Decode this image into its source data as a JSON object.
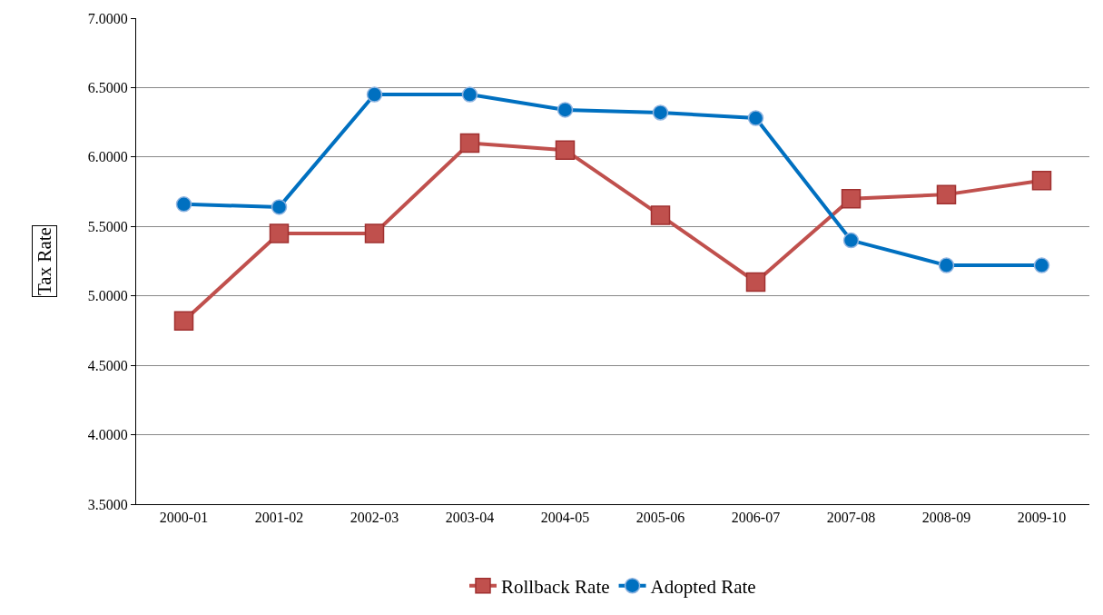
{
  "chart_data": {
    "type": "line",
    "ylabel": "Tax Rate",
    "categories": [
      "2000-01",
      "2001-02",
      "2002-03",
      "2003-04",
      "2004-05",
      "2005-06",
      "2006-07",
      "2007-08",
      "2008-09",
      "2009-10"
    ],
    "series": [
      {
        "name": "Rollback Rate",
        "color": "#c0504d",
        "marker": "square",
        "values": [
          4.82,
          5.45,
          5.45,
          6.1,
          6.05,
          5.58,
          5.1,
          5.7,
          5.73,
          5.83
        ]
      },
      {
        "name": "Adopted Rate",
        "color": "#0070c0",
        "marker": "circle",
        "values": [
          5.66,
          5.64,
          6.45,
          6.45,
          6.34,
          6.32,
          6.28,
          5.4,
          5.22,
          5.22
        ]
      }
    ],
    "ylim": [
      3.5,
      7.0
    ],
    "yticks": [
      {
        "value": 3.5,
        "label": "3.5000"
      },
      {
        "value": 4.0,
        "label": "4.0000"
      },
      {
        "value": 4.5,
        "label": "4.5000"
      },
      {
        "value": 5.0,
        "label": "5.0000"
      },
      {
        "value": 5.5,
        "label": "5.5000"
      },
      {
        "value": 6.0,
        "label": "6.0000"
      },
      {
        "value": 6.5,
        "label": "6.5000"
      },
      {
        "value": 7.0,
        "label": "7.0000"
      }
    ],
    "grid": "y",
    "legend": "bottom",
    "line_style": "solid"
  }
}
